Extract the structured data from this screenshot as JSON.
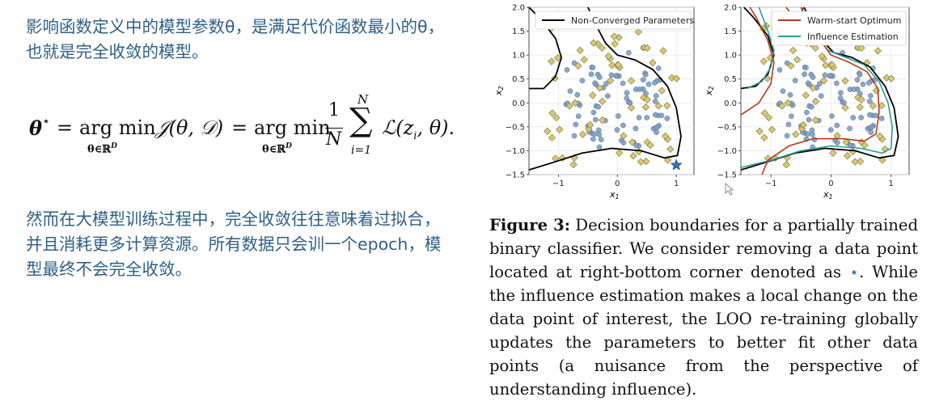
{
  "para1": "影响函数定义中的模型参数θ，是满足代价函数最小的θ，也就是完全收敛的模型。",
  "para2": "然而在大模型训练过程中，完全收敛往往意味着过拟合，并且消耗更多计算资源。所有数据只会训一个epoch，模型最终不会完全收敛。",
  "formula": {
    "lhs": "θ",
    "star": "⋆",
    "eq1": "=",
    "argmin": "arg min",
    "sub": "θ∈ℝ",
    "sub_sup": "D",
    "J": "𝒥(θ, 𝒟)",
    "eq2": "=",
    "frac_num": "1",
    "frac_den": "N",
    "sum_top": "N",
    "sum": "∑",
    "sum_bot": "i=1",
    "L": "ℒ(z",
    "L_sub": "i",
    "L_end": ", θ)."
  },
  "caption": {
    "label": "Figure 3:",
    "text_before_star": "Decision boundaries for a partially trained binary classifier. We consider removing a data point located at right-bottom corner denoted as",
    "star": "⋆",
    "text_after_star": ". While the influence estimation makes a local change on the data point of interest, the LOO re-training globally updates the parameters to better fit other data points (a nuisance from the perspective of understanding influence)."
  },
  "chart_data": [
    {
      "type": "scatter",
      "legend": [
        "Non-Converged Parameters"
      ],
      "legend_position": "top-right",
      "xlabel": "x1",
      "ylabel": "x2",
      "xlim": [
        -1.5,
        1.3
      ],
      "ylim": [
        -1.5,
        2.0
      ],
      "xticks": [
        "−1",
        "0",
        "1"
      ],
      "yticks": [
        "2.0",
        "1.5",
        "1.0",
        "0.5",
        "0.0",
        "−0.5",
        "−1.0",
        "−1.5"
      ],
      "grid": true,
      "series": [
        {
          "name": "Non-Converged Parameters",
          "color": "#000000",
          "kind": "line"
        }
      ],
      "colors": {
        "class_a": "#7f9fc2",
        "class_b": "#d6c878",
        "removed_point": "#3a6fb5"
      }
    },
    {
      "type": "scatter",
      "legend": [
        "Warm-start Optimum",
        "Influence Estimation"
      ],
      "legend_position": "top-right",
      "xlabel": "x1",
      "ylabel": "x2",
      "xlim": [
        -1.5,
        1.3
      ],
      "ylim": [
        -1.5,
        2.0
      ],
      "xticks": [
        "−1",
        "0",
        "1"
      ],
      "yticks": [
        "2.0",
        "1.5",
        "1.0",
        "0.5",
        "0.0",
        "−0.5",
        "−1.0",
        "−1.5"
      ],
      "grid": true,
      "series": [
        {
          "name": "Warm-start Optimum",
          "color": "#b33a1c",
          "kind": "line"
        },
        {
          "name": "Influence Estimation",
          "color": "#2a9d9a",
          "kind": "line"
        }
      ],
      "colors": {
        "class_a": "#7f9fc2",
        "class_b": "#d6c878"
      }
    }
  ]
}
